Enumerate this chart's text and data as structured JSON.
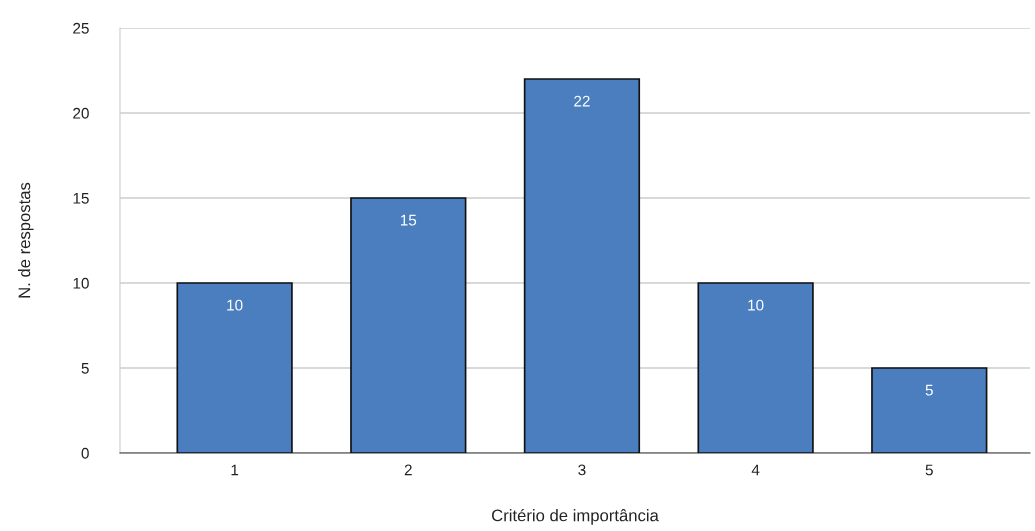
{
  "chart_data": {
    "type": "bar",
    "xlabel": "Critério de importância",
    "ylabel": "N. de respostas",
    "categories": [
      "1",
      "2",
      "3",
      "4",
      "5"
    ],
    "values": [
      10,
      15,
      22,
      10,
      5
    ],
    "color": "#4a7ebf",
    "ylim": [
      0,
      25
    ],
    "yticks": [
      0,
      5,
      10,
      15,
      20,
      25
    ],
    "grid": "y",
    "data_labels": true
  }
}
